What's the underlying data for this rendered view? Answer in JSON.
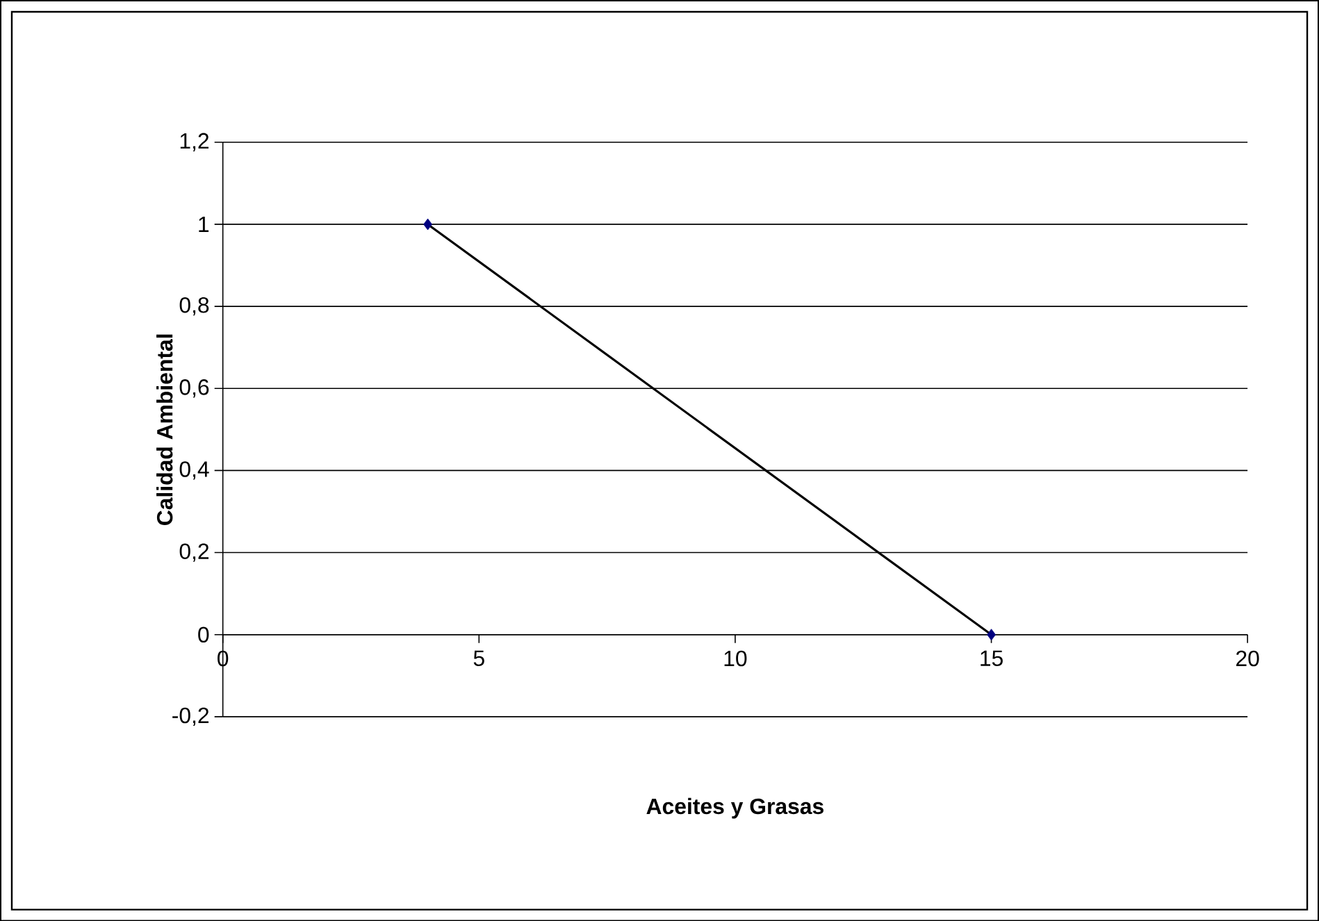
{
  "chart_data": {
    "type": "line",
    "xlabel": "Aceites y Grasas",
    "ylabel": "Calidad Ambiental",
    "x": [
      4,
      15
    ],
    "series": [
      {
        "color": "#000000",
        "colors": [
          "#000080",
          "#000080"
        ],
        "values": [
          1,
          0
        ]
      }
    ],
    "xlim": [
      0,
      20
    ],
    "xticks": [
      0,
      5,
      10,
      15,
      20
    ],
    "ylim": [
      -0.2,
      1.2
    ],
    "yticks": [
      {
        "value": -0.2,
        "label": "-0,2"
      },
      {
        "value": 0,
        "label": "0"
      },
      {
        "value": 0.2,
        "label": "0,2"
      },
      {
        "value": 0.4,
        "label": "0,4"
      },
      {
        "value": 0.6,
        "label": "0,6"
      },
      {
        "value": 0.8,
        "label": "0,8"
      },
      {
        "value": 1,
        "label": "1"
      },
      {
        "value": 1.2,
        "label": "1,2"
      }
    ],
    "grid": "y",
    "marker": "diamond",
    "line_style": "solid"
  }
}
